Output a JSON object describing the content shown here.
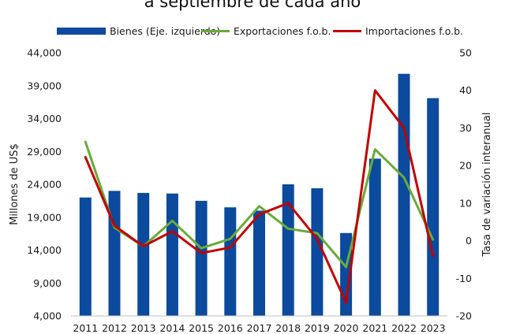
{
  "chart_data": {
    "type": "bar",
    "title": "a septiembre de cada año",
    "categories": [
      "2011",
      "2012",
      "2013",
      "2014",
      "2015",
      "2016",
      "2017",
      "2018",
      "2019",
      "2020",
      "2021",
      "2022",
      "2023"
    ],
    "ylabel": "Millones de US$",
    "y2label": "Tasa de variación interanual",
    "ylim": [
      4000,
      44000
    ],
    "y2lim": [
      -20,
      50
    ],
    "yticks": [
      "4,000",
      "9,000",
      "14,000",
      "19,000",
      "24,000",
      "29,000",
      "34,000",
      "39,000",
      "44,000"
    ],
    "y2ticks": [
      "-20",
      "-10",
      "0",
      "10",
      "20",
      "30",
      "40",
      "50"
    ],
    "grid": false,
    "legend_position": "top",
    "series": [
      {
        "name": "Bienes (Eje. izquierdo)",
        "type": "bar",
        "axis": "left",
        "color": "#0b4a9c",
        "values": [
          22000,
          23000,
          22700,
          22600,
          21500,
          20500,
          20000,
          24000,
          23400,
          16600,
          27900,
          40800,
          37100
        ]
      },
      {
        "name": "Exportaciones f.o.b.",
        "type": "line",
        "axis": "right",
        "color": "#6aaa3a",
        "values": [
          26.3,
          3.5,
          -1.5,
          5.3,
          -2.0,
          0.5,
          9.2,
          3.2,
          2.0,
          -7.0,
          24.3,
          16.8,
          0.3
        ]
      },
      {
        "name": "Importaciones f.o.b.",
        "type": "line",
        "axis": "right",
        "color": "#c00000",
        "values": [
          22.2,
          4.0,
          -1.5,
          2.5,
          -3.3,
          -1.8,
          7.0,
          10.0,
          0.5,
          -16.5,
          40.0,
          30.0,
          -4.0
        ]
      }
    ]
  }
}
